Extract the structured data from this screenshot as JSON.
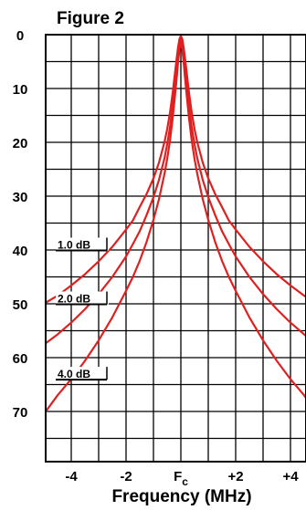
{
  "chart_data": {
    "type": "line",
    "title": "Figure 2",
    "xlabel": "Frequency (MHz)",
    "ylabel": "",
    "xlim": [
      -5,
      5
    ],
    "ylim": [
      0,
      80
    ],
    "y_inverted": true,
    "grid": true,
    "x_tick_labels": [
      {
        "value": -4,
        "label": "-4"
      },
      {
        "value": -2,
        "label": "-2"
      },
      {
        "value": 0,
        "label": "F",
        "subscript": "c"
      },
      {
        "value": 2,
        "label": "+2"
      },
      {
        "value": 4,
        "label": "+4"
      }
    ],
    "y_ticks": [
      {
        "value": 0,
        "label": "0"
      },
      {
        "value": 10,
        "label": "10"
      },
      {
        "value": 20,
        "label": "20"
      },
      {
        "value": 30,
        "label": "30"
      },
      {
        "value": 40,
        "label": "40"
      },
      {
        "value": 50,
        "label": "50"
      },
      {
        "value": 60,
        "label": "60"
      },
      {
        "value": 70,
        "label": "70"
      }
    ],
    "line_color": "#e02020",
    "series": [
      {
        "name": "1.0 dB",
        "x": [
          0,
          0.05,
          0.1,
          0.15,
          0.2,
          0.3,
          0.4,
          0.5,
          0.6,
          0.8,
          1.0,
          1.25,
          1.5,
          1.75,
          2.0,
          2.5,
          3.0,
          3.5,
          4.0,
          4.5,
          5.0
        ],
        "y": [
          0.2,
          0.8,
          2.3,
          4.3,
          6.5,
          10.9,
          14.6,
          17.6,
          20.0,
          23.8,
          26.7,
          29.6,
          32.0,
          34.5,
          36.2,
          39.4,
          42.1,
          44.5,
          46.6,
          48.5,
          50.0
        ]
      },
      {
        "name": "2.0 dB",
        "x": [
          0,
          0.05,
          0.1,
          0.15,
          0.2,
          0.3,
          0.4,
          0.5,
          0.6,
          0.8,
          1.0,
          1.25,
          1.5,
          1.75,
          2.0,
          2.5,
          3.0,
          3.5,
          4.0,
          4.5,
          5.0
        ],
        "y": [
          0.8,
          1.8,
          3.8,
          6.3,
          8.7,
          13.4,
          17.3,
          20.4,
          23.0,
          27.0,
          30.2,
          33.5,
          36.5,
          38.9,
          41.2,
          45.0,
          48.2,
          51.0,
          53.5,
          55.7,
          57.6
        ]
      },
      {
        "name": "4.0 dB",
        "x": [
          0,
          0.05,
          0.1,
          0.15,
          0.2,
          0.3,
          0.4,
          0.5,
          0.6,
          0.8,
          1.0,
          1.25,
          1.5,
          1.75,
          2.0,
          2.5,
          3.0,
          3.5,
          4.0,
          4.5,
          5.0
        ],
        "y": [
          1.5,
          2.7,
          5.0,
          7.9,
          10.6,
          15.6,
          19.8,
          23.1,
          25.9,
          30.6,
          34.4,
          38.5,
          42.0,
          45.0,
          47.6,
          52.5,
          56.8,
          60.6,
          64.0,
          67.0,
          70.5
        ]
      }
    ]
  }
}
